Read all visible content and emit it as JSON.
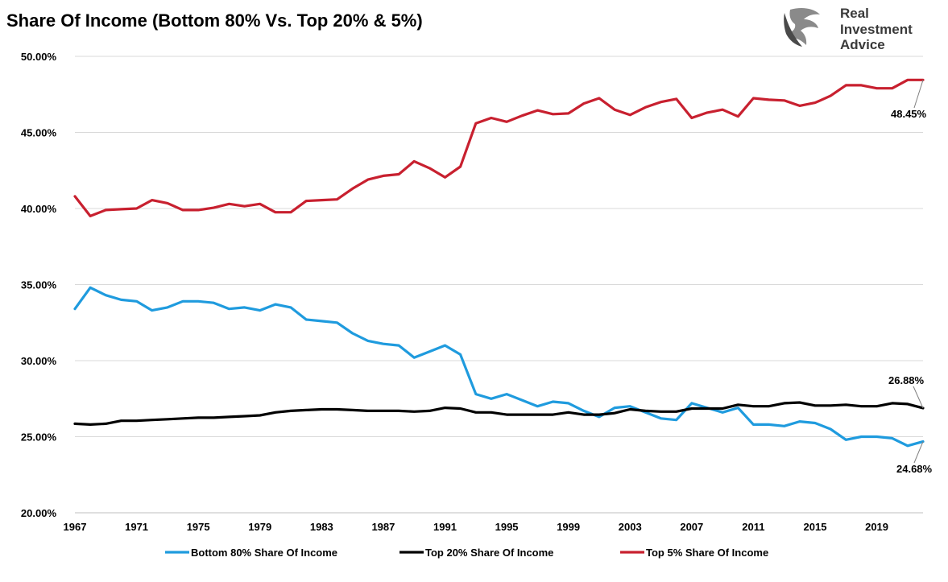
{
  "brand": {
    "logo_icon": "eagle-head-icon",
    "lines": [
      "Real",
      "Investment",
      "Advice"
    ]
  },
  "chart_data": {
    "type": "line",
    "title": "Share Of Income (Bottom 80% Vs. Top 20% & 5%)",
    "xlabel": "",
    "ylabel": "",
    "x": [
      1967,
      1968,
      1969,
      1970,
      1971,
      1972,
      1973,
      1974,
      1975,
      1976,
      1977,
      1978,
      1979,
      1980,
      1981,
      1982,
      1983,
      1984,
      1985,
      1986,
      1987,
      1988,
      1989,
      1990,
      1991,
      1992,
      1993,
      1994,
      1995,
      1996,
      1997,
      1998,
      1999,
      2000,
      2001,
      2002,
      2003,
      2004,
      2005,
      2006,
      2007,
      2008,
      2009,
      2010,
      2011,
      2012,
      2013,
      2014,
      2015,
      2016,
      2017,
      2018,
      2019,
      2020,
      2021,
      2022
    ],
    "xlim": [
      1967,
      2022
    ],
    "x_ticks": [
      "1967",
      "1971",
      "1975",
      "1979",
      "1983",
      "1987",
      "1991",
      "1995",
      "1999",
      "2003",
      "2007",
      "2011",
      "2015",
      "2019"
    ],
    "ylim": [
      20,
      50
    ],
    "y_ticks": [
      "20.00%",
      "25.00%",
      "30.00%",
      "35.00%",
      "40.00%",
      "45.00%",
      "50.00%"
    ],
    "grid": "horizontal",
    "legend_position": "bottom",
    "series": [
      {
        "name": "Bottom 80% Share Of Income",
        "color": "#1f9bde",
        "values": [
          33.4,
          34.8,
          34.3,
          34.0,
          33.9,
          33.3,
          33.5,
          33.9,
          33.9,
          33.8,
          33.4,
          33.5,
          33.3,
          33.7,
          33.5,
          32.7,
          32.6,
          32.5,
          31.8,
          31.3,
          31.1,
          31.0,
          30.2,
          30.6,
          31.0,
          30.4,
          27.8,
          27.5,
          27.8,
          27.4,
          27.0,
          27.3,
          27.2,
          26.7,
          26.3,
          26.9,
          27.0,
          26.6,
          26.2,
          26.1,
          27.2,
          26.9,
          26.6,
          26.9,
          25.8,
          25.8,
          25.7,
          26.0,
          25.9,
          25.5,
          24.8,
          25.0,
          25.0,
          24.9,
          24.4,
          24.68
        ],
        "end_label": "24.68%"
      },
      {
        "name": "Top 20% Share Of Income",
        "color": "#000000",
        "values": [
          25.85,
          25.8,
          25.85,
          26.05,
          26.05,
          26.1,
          26.15,
          26.2,
          26.25,
          26.25,
          26.3,
          26.35,
          26.4,
          26.6,
          26.7,
          26.75,
          26.8,
          26.8,
          26.75,
          26.7,
          26.7,
          26.7,
          26.65,
          26.7,
          26.9,
          26.85,
          26.6,
          26.6,
          26.45,
          26.45,
          26.45,
          26.45,
          26.6,
          26.45,
          26.45,
          26.55,
          26.8,
          26.7,
          26.65,
          26.65,
          26.85,
          26.85,
          26.85,
          27.1,
          27.0,
          27.0,
          27.2,
          27.25,
          27.05,
          27.05,
          27.1,
          27.0,
          27.0,
          27.2,
          27.15,
          26.88
        ],
        "end_label": "26.88%"
      },
      {
        "name": "Top 5% Share Of Income",
        "color": "#c8202f",
        "values": [
          40.8,
          39.5,
          39.9,
          39.95,
          40.0,
          40.55,
          40.35,
          39.9,
          39.9,
          40.05,
          40.3,
          40.15,
          40.3,
          39.75,
          39.75,
          40.5,
          40.55,
          40.6,
          41.3,
          41.9,
          42.15,
          42.25,
          43.1,
          42.65,
          42.05,
          42.75,
          45.6,
          45.95,
          45.7,
          46.1,
          46.45,
          46.2,
          46.25,
          46.9,
          47.25,
          46.5,
          46.15,
          46.65,
          47.0,
          47.2,
          45.95,
          46.3,
          46.5,
          46.05,
          47.25,
          47.15,
          47.1,
          46.75,
          46.95,
          47.4,
          48.1,
          48.1,
          47.9,
          47.9,
          48.45,
          48.45
        ],
        "end_label": "48.45%"
      }
    ]
  }
}
